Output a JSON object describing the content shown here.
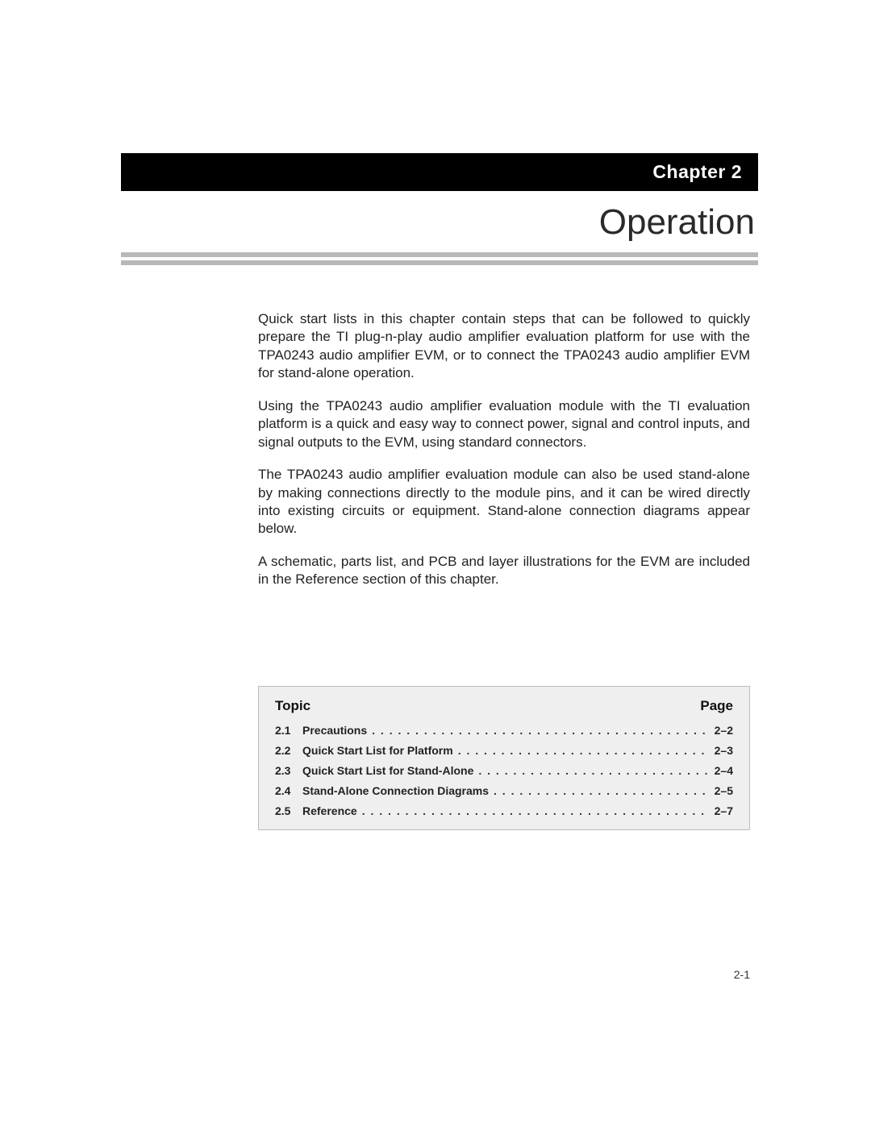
{
  "chapter_label": "Chapter 2",
  "chapter_title": "Operation",
  "paragraphs": {
    "p1": "Quick start lists in this chapter contain steps that can be followed to quickly prepare the TI plug-n-play audio amplifier evaluation platform for use with the TPA0243 audio amplifier EVM, or to connect the TPA0243 audio amplifier EVM for stand-alone operation.",
    "p2": "Using the TPA0243 audio amplifier evaluation module with the TI evaluation platform is a quick and easy way to connect power, signal and control inputs, and signal outputs to the EVM, using standard connectors.",
    "p3": "The TPA0243 audio amplifier evaluation module can also be used stand-alone by making connections directly to the module pins, and it can be wired directly into existing circuits or equipment. Stand-alone connection diagrams appear below.",
    "p4": "A schematic, parts list, and PCB and layer illustrations for the EVM are included in the Reference section of this chapter."
  },
  "toc": {
    "header_topic": "Topic",
    "header_page": "Page",
    "items": [
      {
        "num": "2.1",
        "title": "Precautions",
        "page": "2–​2"
      },
      {
        "num": "2.2",
        "title": "Quick Start List for Platform",
        "page": "2–​3"
      },
      {
        "num": "2.3",
        "title": "Quick Start List for Stand-Alone",
        "page": "2–​4"
      },
      {
        "num": "2.4",
        "title": "Stand-Alone Connection Diagrams",
        "page": "2–​5"
      },
      {
        "num": "2.5",
        "title": "Reference",
        "page": "2–​7"
      }
    ]
  },
  "page_number": "2-1",
  "colors": {
    "rule": "#b8b8b8",
    "toc_bg": "#efefef",
    "toc_border": "#bbbbbb",
    "text": "#1a1a1a"
  }
}
